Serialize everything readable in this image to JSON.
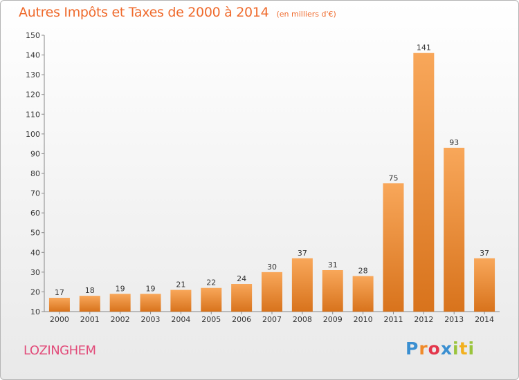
{
  "chart_data": {
    "type": "bar",
    "title": "Autres Impôts et Taxes de 2000 à 2014",
    "subtitle": "(en milliers d'€)",
    "categories": [
      "2000",
      "2001",
      "2002",
      "2003",
      "2004",
      "2005",
      "2006",
      "2007",
      "2008",
      "2009",
      "2010",
      "2011",
      "2012",
      "2013",
      "2014"
    ],
    "values": [
      17,
      18,
      19,
      19,
      21,
      22,
      24,
      30,
      37,
      31,
      28,
      75,
      141,
      93,
      37
    ],
    "ylim": [
      10,
      150
    ],
    "yticks": [
      10,
      20,
      30,
      40,
      50,
      60,
      70,
      80,
      90,
      100,
      110,
      120,
      130,
      140,
      150
    ],
    "grid": false,
    "colors": {
      "bar_light": "#f8a75a",
      "bar_dark": "#d8731c",
      "axis": "#888888",
      "title": "#ef6a2c",
      "location": "#e24c7a"
    }
  },
  "footer": {
    "location": "LOZINGHEM",
    "brand": "Proxiti",
    "brand_colors": [
      "#3a8fd1",
      "#f08a2a",
      "#e3364b",
      "#3a8fd1",
      "#9ac43c",
      "#f2b01e",
      "#9ac43c"
    ]
  }
}
